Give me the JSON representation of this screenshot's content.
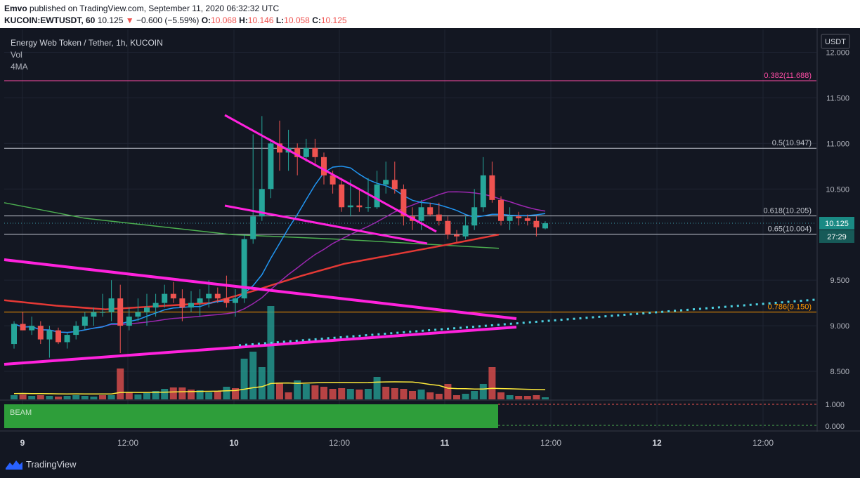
{
  "header": {
    "publisher": "Emvo",
    "published_text": "published on TradingView.com, September 11, 2020 06:32:32 UTC",
    "symbol": "KUCOIN:EWTUSDT, 60",
    "last": "10.125",
    "arrow": "▼",
    "change": "−0.600 (−5.59%)",
    "o_label": "O:",
    "o": "10.068",
    "h_label": "H:",
    "h": "10.146",
    "l_label": "L:",
    "l": "10.058",
    "c_label": "C:",
    "c": "10.125"
  },
  "legend": {
    "title": "Energy Web Token / Tether, 1h, KUCOIN",
    "vol": "Vol",
    "ma": "4MA"
  },
  "brand": "TradingView",
  "colors": {
    "background": "#131722",
    "up": "#26a69a",
    "down": "#ef5350",
    "trend_magenta": "#ff22dd",
    "ma_blue": "#2196f3",
    "ma_purple": "#9c27b0",
    "ma_red": "#e53935",
    "ma_green": "#4caf50",
    "fib_pink": "#ff4da6",
    "fib_orange": "#ff9800",
    "dotted_cyan": "#4dd0e1",
    "beam_green": "#2e9e3a"
  },
  "chart_data": {
    "type": "candlestick",
    "x_ticks": [
      "9",
      "12:00",
      "10",
      "12:00",
      "11",
      "12:00",
      "12",
      "12:00"
    ],
    "y_ticks": [
      "12.000",
      "11.500",
      "11.000",
      "10.500",
      "10.000",
      "9.500",
      "9.000",
      "8.500"
    ],
    "y_range": [
      8.2,
      12.25
    ],
    "currency_label": "USDT",
    "last_price_label": "10.125",
    "countdown_label": "27:29",
    "fib_levels": [
      {
        "label": "0.382(11.688)",
        "value": 11.688
      },
      {
        "label": "0.5(10.947)",
        "value": 10.947
      },
      {
        "label": "0.618(10.205)",
        "value": 10.205
      },
      {
        "label": "0.65(10.004)",
        "value": 10.004
      },
      {
        "label": "0.786(9.150)",
        "value": 9.15
      }
    ],
    "candles": [
      [
        8.8,
        9.05,
        8.75,
        9.02
      ],
      [
        9.02,
        9.15,
        8.95,
        8.95
      ],
      [
        8.95,
        9.1,
        8.9,
        9.0
      ],
      [
        9.0,
        9.05,
        8.8,
        8.85
      ],
      [
        8.85,
        9.0,
        8.65,
        8.95
      ],
      [
        8.95,
        8.98,
        8.8,
        8.82
      ],
      [
        8.82,
        8.92,
        8.75,
        8.9
      ],
      [
        8.9,
        9.05,
        8.85,
        9.0
      ],
      [
        9.0,
        9.15,
        8.95,
        9.1
      ],
      [
        9.1,
        9.2,
        9.0,
        9.15
      ],
      [
        9.15,
        9.35,
        9.1,
        9.15
      ],
      [
        9.15,
        9.5,
        9.05,
        9.3
      ],
      [
        9.3,
        9.45,
        8.7,
        9.0
      ],
      [
        9.0,
        9.2,
        8.95,
        9.1
      ],
      [
        9.1,
        9.3,
        9.05,
        9.15
      ],
      [
        9.15,
        9.35,
        9.0,
        9.2
      ],
      [
        9.2,
        9.35,
        9.1,
        9.25
      ],
      [
        9.25,
        9.45,
        9.2,
        9.35
      ],
      [
        9.35,
        9.48,
        9.25,
        9.3
      ],
      [
        9.3,
        9.4,
        9.05,
        9.2
      ],
      [
        9.2,
        9.38,
        9.15,
        9.25
      ],
      [
        9.25,
        9.4,
        9.1,
        9.3
      ],
      [
        9.3,
        9.5,
        9.2,
        9.35
      ],
      [
        9.35,
        9.42,
        9.25,
        9.3
      ],
      [
        9.3,
        9.55,
        9.2,
        9.25
      ],
      [
        9.25,
        9.4,
        9.1,
        9.3
      ],
      [
        9.3,
        10.0,
        9.25,
        9.95
      ],
      [
        9.95,
        11.1,
        9.9,
        10.2
      ],
      [
        10.2,
        11.3,
        10.15,
        10.5
      ],
      [
        10.5,
        11.05,
        10.4,
        11.0
      ],
      [
        11.0,
        11.25,
        10.7,
        10.9
      ],
      [
        10.9,
        11.15,
        10.7,
        10.95
      ],
      [
        10.95,
        11.0,
        10.65,
        10.85
      ],
      [
        10.85,
        11.05,
        10.8,
        10.95
      ],
      [
        10.95,
        11.05,
        10.75,
        10.85
      ],
      [
        10.85,
        10.9,
        10.55,
        10.65
      ],
      [
        10.65,
        10.7,
        10.45,
        10.55
      ],
      [
        10.55,
        10.62,
        10.25,
        10.3
      ],
      [
        10.3,
        10.6,
        10.2,
        10.32
      ],
      [
        10.32,
        10.5,
        10.25,
        10.3
      ],
      [
        10.3,
        10.62,
        10.25,
        10.3
      ],
      [
        10.3,
        10.7,
        10.28,
        10.55
      ],
      [
        10.55,
        10.8,
        10.45,
        10.6
      ],
      [
        10.6,
        10.8,
        10.45,
        10.5
      ],
      [
        10.5,
        10.55,
        10.1,
        10.2
      ],
      [
        10.2,
        10.3,
        10.05,
        10.15
      ],
      [
        10.15,
        10.38,
        10.05,
        10.3
      ],
      [
        10.3,
        10.35,
        10.2,
        10.22
      ],
      [
        10.22,
        10.35,
        10.1,
        10.15
      ],
      [
        10.15,
        10.2,
        9.95,
        10.0
      ],
      [
        10.0,
        10.05,
        9.92,
        9.98
      ],
      [
        9.98,
        10.2,
        9.95,
        10.1
      ],
      [
        10.1,
        10.5,
        10.05,
        10.3
      ],
      [
        10.3,
        10.85,
        10.25,
        10.65
      ],
      [
        10.65,
        10.8,
        10.35,
        10.38
      ],
      [
        10.38,
        10.42,
        10.1,
        10.15
      ],
      [
        10.15,
        10.3,
        10.05,
        10.2
      ],
      [
        10.2,
        10.25,
        10.1,
        10.18
      ],
      [
        10.18,
        10.22,
        10.1,
        10.15
      ],
      [
        10.15,
        10.2,
        9.98,
        10.08
      ],
      [
        10.068,
        10.146,
        10.058,
        10.125
      ]
    ],
    "volume": [
      {
        "v": 6,
        "up": 1
      },
      {
        "v": 7,
        "up": 0
      },
      {
        "v": 5,
        "up": 1
      },
      {
        "v": 6,
        "up": 0
      },
      {
        "v": 5,
        "up": 1
      },
      {
        "v": 4,
        "up": 0
      },
      {
        "v": 5,
        "up": 1
      },
      {
        "v": 6,
        "up": 1
      },
      {
        "v": 5,
        "up": 1
      },
      {
        "v": 4,
        "up": 1
      },
      {
        "v": 6,
        "up": 0
      },
      {
        "v": 6,
        "up": 1
      },
      {
        "v": 44,
        "up": 0
      },
      {
        "v": 10,
        "up": 0
      },
      {
        "v": 7,
        "up": 1
      },
      {
        "v": 9,
        "up": 1
      },
      {
        "v": 12,
        "up": 1
      },
      {
        "v": 15,
        "up": 1
      },
      {
        "v": 17,
        "up": 0
      },
      {
        "v": 17,
        "up": 0
      },
      {
        "v": 14,
        "up": 0
      },
      {
        "v": 13,
        "up": 1
      },
      {
        "v": 10,
        "up": 1
      },
      {
        "v": 12,
        "up": 0
      },
      {
        "v": 18,
        "up": 1
      },
      {
        "v": 16,
        "up": 0
      },
      {
        "v": 58,
        "up": 1
      },
      {
        "v": 68,
        "up": 1
      },
      {
        "v": 46,
        "up": 1
      },
      {
        "v": 133,
        "up": 1
      },
      {
        "v": 24,
        "up": 0
      },
      {
        "v": 10,
        "up": 0
      },
      {
        "v": 27,
        "up": 1
      },
      {
        "v": 22,
        "up": 1
      },
      {
        "v": 20,
        "up": 0
      },
      {
        "v": 18,
        "up": 0
      },
      {
        "v": 15,
        "up": 0
      },
      {
        "v": 16,
        "up": 0
      },
      {
        "v": 15,
        "up": 1
      },
      {
        "v": 14,
        "up": 0
      },
      {
        "v": 15,
        "up": 1
      },
      {
        "v": 32,
        "up": 1
      },
      {
        "v": 18,
        "up": 0
      },
      {
        "v": 16,
        "up": 0
      },
      {
        "v": 15,
        "up": 0
      },
      {
        "v": 12,
        "up": 0
      },
      {
        "v": 14,
        "up": 1
      },
      {
        "v": 10,
        "up": 0
      },
      {
        "v": 8,
        "up": 0
      },
      {
        "v": 22,
        "up": 0
      },
      {
        "v": 6,
        "up": 0
      },
      {
        "v": 8,
        "up": 1
      },
      {
        "v": 12,
        "up": 1
      },
      {
        "v": 22,
        "up": 1
      },
      {
        "v": 46,
        "up": 0
      },
      {
        "v": 10,
        "up": 0
      },
      {
        "v": 6,
        "up": 1
      },
      {
        "v": 5,
        "up": 0
      },
      {
        "v": 5,
        "up": 0
      },
      {
        "v": 6,
        "up": 0
      },
      {
        "v": 3,
        "up": 1
      }
    ],
    "indicator": {
      "name": "BEAM",
      "ticks": [
        "1.000",
        "0.000"
      ]
    }
  }
}
